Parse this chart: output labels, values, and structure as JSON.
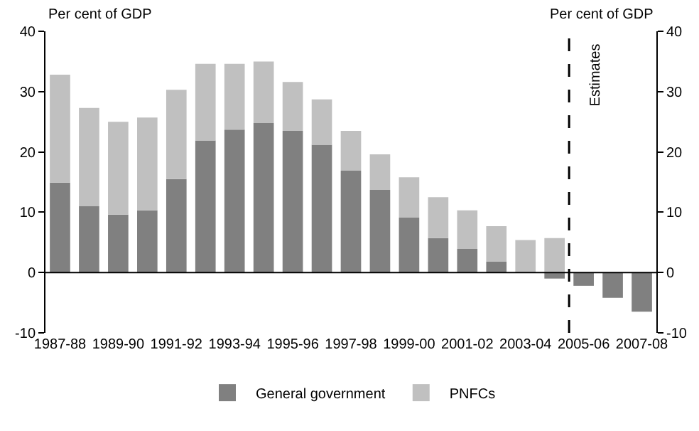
{
  "chart_data": {
    "type": "bar",
    "stacked": true,
    "ylabel": "Per cent of GDP",
    "y2label": "Per cent of GDP",
    "categories": [
      "1987-88",
      null,
      "1989-90",
      null,
      "1991-92",
      null,
      "1993-94",
      null,
      "1995-96",
      null,
      "1997-98",
      null,
      "1999-00",
      null,
      "2001-02",
      null,
      "2003-04",
      null,
      "2005-06",
      null,
      "2007-08"
    ],
    "series": [
      {
        "name": "General government",
        "color": "#808080",
        "values": [
          14.9,
          11,
          9.6,
          10.3,
          15.5,
          21.9,
          23.7,
          24.8,
          23.5,
          21.2,
          16.9,
          13.7,
          9.1,
          5.7,
          3.9,
          1.8,
          0,
          -1,
          -2.2,
          -4.2,
          -6.5
        ]
      },
      {
        "name": "PNFCs",
        "color": "#c0c0c0",
        "values": [
          17.9,
          16.3,
          15.4,
          15.4,
          14.8,
          12.7,
          10.9,
          10.2,
          8.1,
          7.5,
          6.6,
          5.9,
          6.7,
          6.8,
          6.4,
          5.9,
          5.4,
          5.7,
          null,
          null,
          null
        ]
      }
    ],
    "ylim": [
      -10,
      40
    ],
    "yticks": [
      -10,
      0,
      10,
      20,
      30,
      40
    ],
    "y2lim": [
      -10,
      40
    ],
    "y2ticks": [
      -10,
      0,
      10,
      20,
      30,
      40
    ],
    "ref_lines": [
      {
        "axis": "x",
        "value": "2005-06",
        "label": "Estimates",
        "color": "#000000",
        "line_style": "dashed"
      }
    ],
    "grid": false,
    "legend": "bottom"
  }
}
